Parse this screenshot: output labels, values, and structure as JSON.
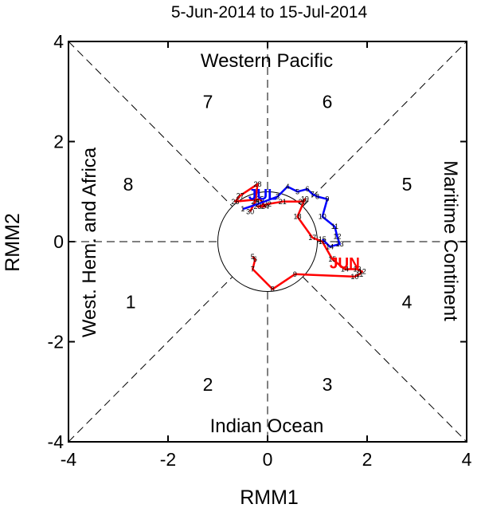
{
  "chart_data": {
    "type": "line",
    "title": "5-Jun-2014 to 15-Jul-2014",
    "xlabel": "RMM1",
    "ylabel": "RMM2",
    "xlim": [
      -4,
      4
    ],
    "ylim": [
      -4,
      4
    ],
    "xticks": [
      "-4",
      "-2",
      "0",
      "2",
      "4"
    ],
    "yticks": [
      "-4",
      "-2",
      "0",
      "2",
      "4"
    ],
    "regions": {
      "top": "Western Pacific",
      "bottom": "Indian Ocean",
      "left": "West. Hem. and Africa",
      "right": "Maritime Continent"
    },
    "phases": [
      {
        "label": "1",
        "x": -2.75,
        "y": -1.2
      },
      {
        "label": "2",
        "x": -1.2,
        "y": -2.85
      },
      {
        "label": "3",
        "x": 1.2,
        "y": -2.85
      },
      {
        "label": "4",
        "x": 2.8,
        "y": -1.2
      },
      {
        "label": "5",
        "x": 2.8,
        "y": 1.15
      },
      {
        "label": "6",
        "x": 1.2,
        "y": 2.8
      },
      {
        "label": "7",
        "x": -1.2,
        "y": 2.8
      },
      {
        "label": "8",
        "x": -2.8,
        "y": 1.15
      }
    ],
    "series": [
      {
        "color": "#ff0000",
        "month_label": "JUN",
        "month_label_pos": [
          1.55,
          -0.42
        ],
        "points": [
          {
            "day": "5",
            "x": -0.3,
            "y": -0.3
          },
          {
            "day": "6",
            "x": -0.25,
            "y": -0.35
          },
          {
            "day": "7",
            "x": -0.3,
            "y": -0.55
          },
          {
            "day": "8",
            "x": 0.1,
            "y": -0.95
          },
          {
            "day": "9",
            "x": 0.55,
            "y": -0.65
          },
          {
            "day": "10",
            "x": 1.75,
            "y": -0.7
          },
          {
            "day": "11",
            "x": 1.85,
            "y": -0.65
          },
          {
            "day": "12",
            "x": 1.9,
            "y": -0.6
          },
          {
            "day": "13",
            "x": 1.8,
            "y": -0.55
          },
          {
            "day": "14",
            "x": 1.55,
            "y": -0.55
          },
          {
            "day": "15",
            "x": 1.3,
            "y": -0.35
          },
          {
            "day": "16",
            "x": 1.1,
            "y": 0.0
          },
          {
            "day": "17",
            "x": 0.9,
            "y": 0.08
          },
          {
            "day": "18",
            "x": 0.6,
            "y": 0.5
          },
          {
            "day": "19",
            "x": 0.75,
            "y": 0.85
          },
          {
            "day": "20",
            "x": 0.7,
            "y": 0.8
          },
          {
            "day": "21",
            "x": 0.3,
            "y": 0.8
          },
          {
            "day": "22",
            "x": 0.0,
            "y": 0.75
          },
          {
            "day": "23",
            "x": -0.2,
            "y": 0.7
          },
          {
            "day": "24",
            "x": -0.05,
            "y": 0.7
          },
          {
            "day": "25",
            "x": -0.15,
            "y": 0.85
          },
          {
            "day": "26",
            "x": -0.65,
            "y": 0.8
          },
          {
            "day": "27",
            "x": -0.55,
            "y": 0.92
          },
          {
            "day": "28",
            "x": -0.2,
            "y": 1.15
          },
          {
            "day": "29",
            "x": -0.25,
            "y": 0.8
          },
          {
            "day": "30",
            "x": -0.35,
            "y": 0.6
          }
        ]
      },
      {
        "color": "#0000ff",
        "month_label": "JUL",
        "month_label_pos": [
          -0.1,
          0.95
        ],
        "points": [
          {
            "day": "1",
            "x": -0.5,
            "y": 0.65
          },
          {
            "day": "2",
            "x": -0.2,
            "y": 0.75
          },
          {
            "day": "3",
            "x": 0.2,
            "y": 0.9
          },
          {
            "day": "4",
            "x": 0.4,
            "y": 1.1
          },
          {
            "day": "5",
            "x": 0.6,
            "y": 1.0
          },
          {
            "day": "6",
            "x": 0.8,
            "y": 1.05
          },
          {
            "day": "7",
            "x": 0.9,
            "y": 0.95
          },
          {
            "day": "8",
            "x": 1.0,
            "y": 0.9
          },
          {
            "day": "9",
            "x": 1.2,
            "y": 0.85
          },
          {
            "day": "10",
            "x": 1.1,
            "y": 0.5
          },
          {
            "day": "11",
            "x": 1.35,
            "y": 0.3
          },
          {
            "day": "12",
            "x": 1.4,
            "y": 0.1
          },
          {
            "day": "13",
            "x": 1.45,
            "y": -0.05
          },
          {
            "day": "14",
            "x": 1.25,
            "y": -0.1
          },
          {
            "day": "15",
            "x": 1.1,
            "y": 0.05
          }
        ]
      }
    ]
  }
}
